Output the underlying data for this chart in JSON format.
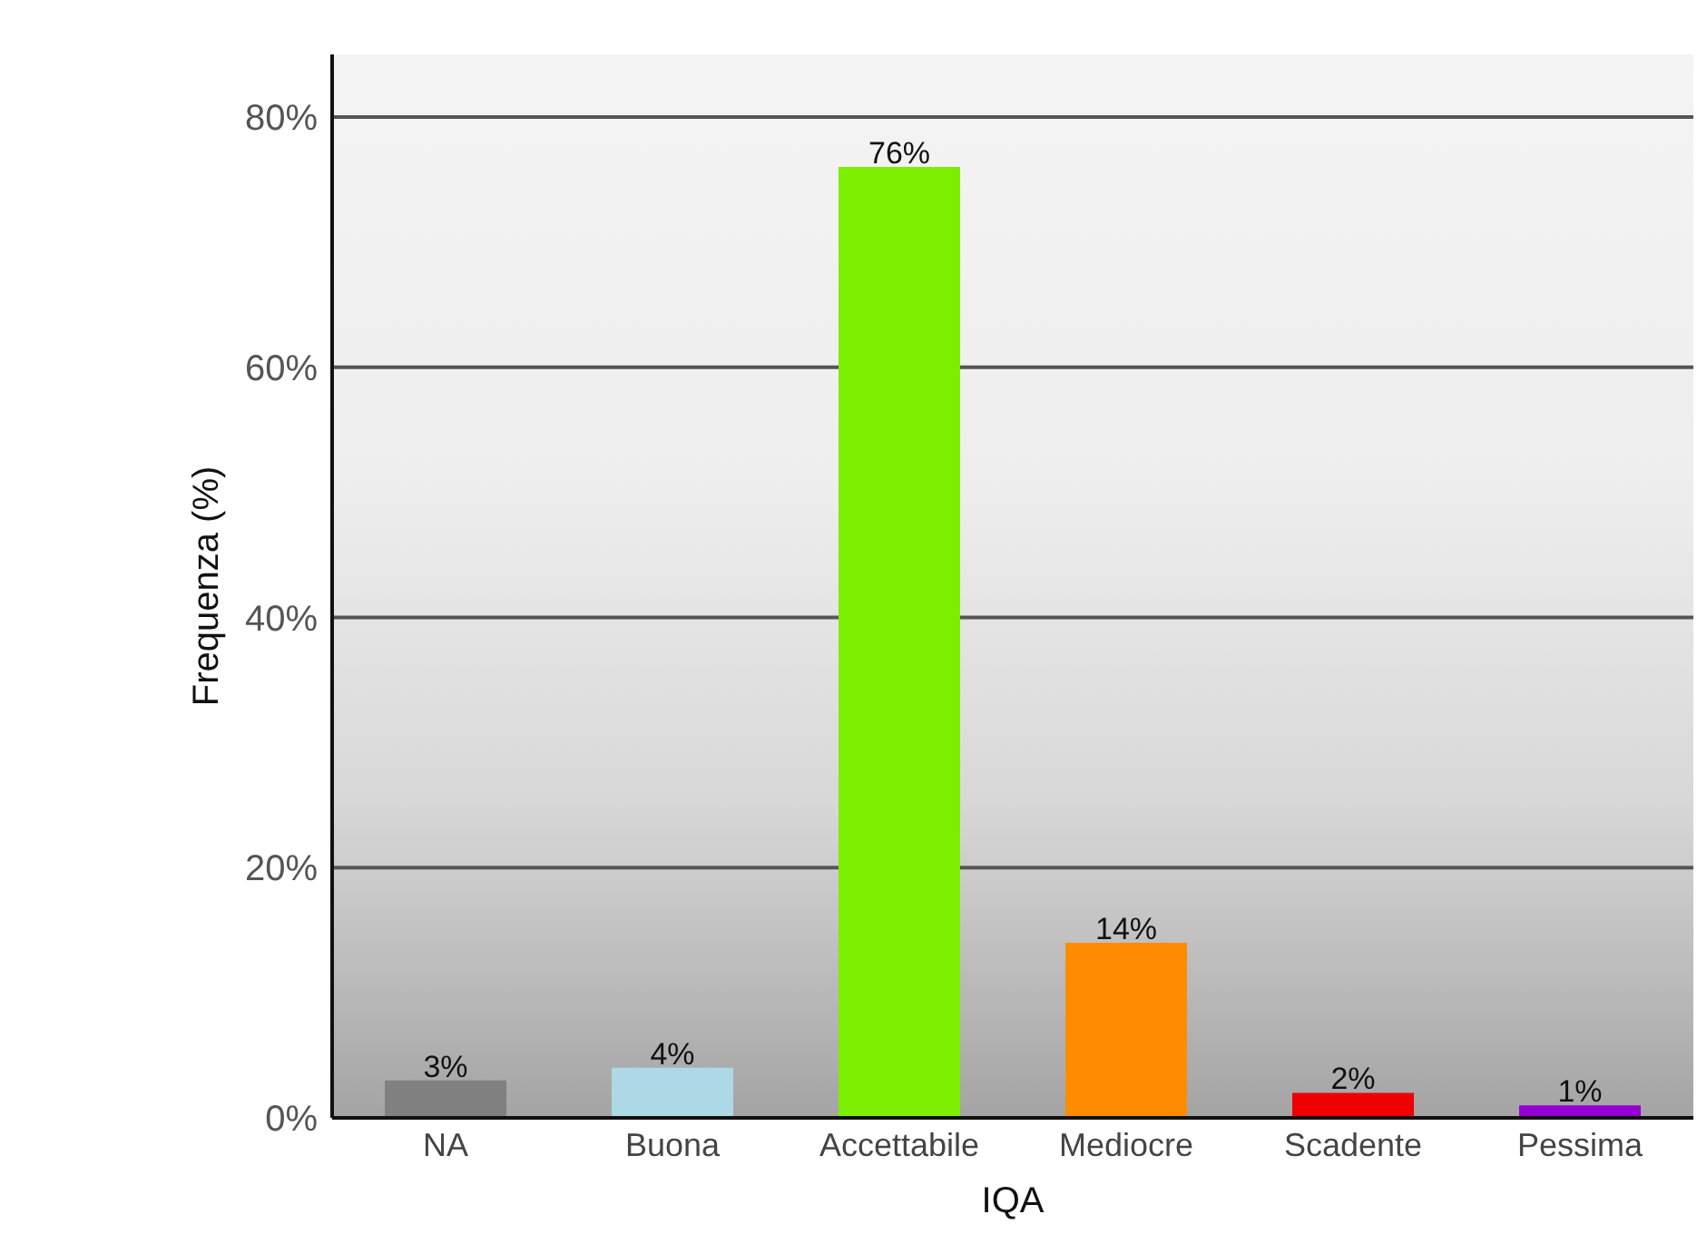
{
  "chart_data": {
    "type": "bar",
    "xlabel": "IQA",
    "ylabel": "Frequenza (%)",
    "categories": [
      "NA",
      "Buona",
      "Accettabile",
      "Mediocre",
      "Scadente",
      "Pessima"
    ],
    "values": [
      3,
      4,
      76,
      14,
      2,
      1
    ],
    "colors": [
      "#808080",
      "#add8e6",
      "#7cee00",
      "#ff8c00",
      "#ee0000",
      "#9400d3"
    ],
    "value_labels": [
      "3%",
      "4%",
      "76%",
      "14%",
      "2%",
      "1%"
    ],
    "ylim": [
      0,
      85
    ],
    "yticks": [
      {
        "value": 0,
        "label": "0%"
      },
      {
        "value": 20,
        "label": "20%"
      },
      {
        "value": 40,
        "label": "40%"
      },
      {
        "value": 60,
        "label": "60%"
      },
      {
        "value": 80,
        "label": "80%"
      }
    ],
    "grid": "y"
  }
}
